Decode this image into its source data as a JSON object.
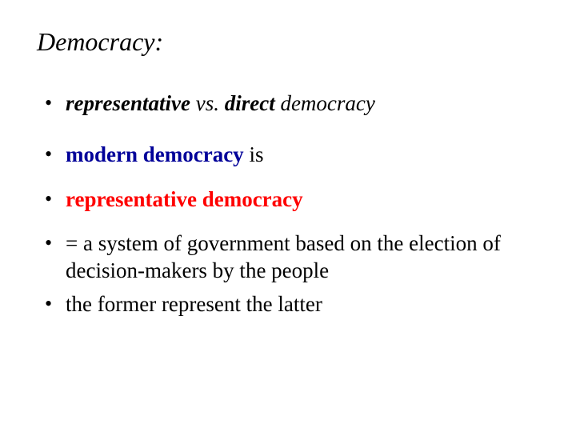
{
  "title": "Democracy:",
  "colors": {
    "text": "#000000",
    "accent_blue": "#000099",
    "accent_red": "#ff0000"
  },
  "bullets": {
    "b1": {
      "t1": "representative",
      "t2": " vs. ",
      "t3": "direct",
      "t4": " democracy"
    },
    "b2": {
      "t1": "modern democracy",
      "t2": " is"
    },
    "b3": {
      "t1": "representative democracy"
    },
    "b4": {
      "t1": "= a system of government based on the election of decision-makers by the people"
    },
    "b5": {
      "t1": "the former represent the latter"
    }
  }
}
